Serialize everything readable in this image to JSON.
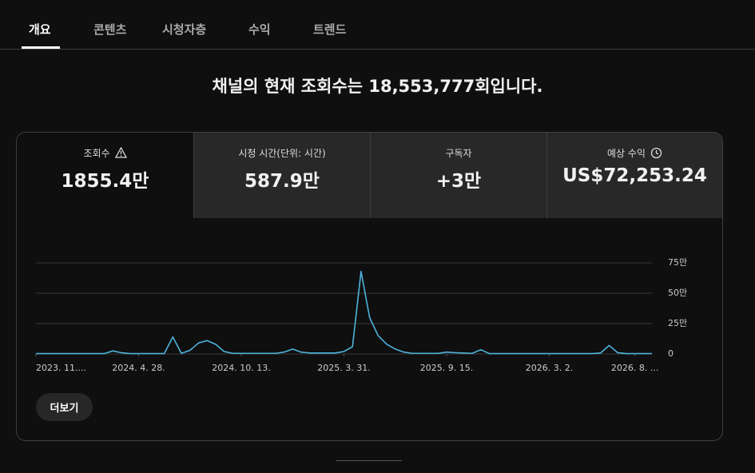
{
  "tabs": [
    "개요",
    "콘텐츠",
    "시청자층",
    "수익",
    "트렌드"
  ],
  "headline": "채널의 현재 조회수는 18,553,777회입니다.",
  "metrics": [
    {
      "label": "조회수",
      "value": "1855.4만"
    },
    {
      "label": "시청 시간(단위: 시간)",
      "value": "587.9만"
    },
    {
      "label": "구독자",
      "value": "+3만"
    },
    {
      "label": "예상 수익",
      "value": "US$72,253.24"
    }
  ],
  "chart_data": {
    "type": "line",
    "color": "#4fb3dc",
    "grid": true,
    "values": [
      3000,
      3000,
      3000,
      3000,
      3000,
      3000,
      3000,
      3000,
      3000,
      25000,
      10000,
      3000,
      3000,
      3000,
      3000,
      3000,
      140000,
      5000,
      30000,
      90000,
      110000,
      80000,
      20000,
      5000,
      5000,
      5000,
      5000,
      5000,
      5000,
      15000,
      40000,
      15000,
      8000,
      8000,
      8000,
      8000,
      20000,
      60000,
      680000,
      300000,
      150000,
      80000,
      40000,
      15000,
      5000,
      5000,
      5000,
      5000,
      15000,
      10000,
      8000,
      5000,
      35000,
      3000,
      3000,
      3000,
      3000,
      3000,
      3000,
      3000,
      3000,
      3000,
      3000,
      3000,
      3000,
      3000,
      8000,
      70000,
      10000,
      3000,
      3000,
      3000,
      3000
    ],
    "xlim": [
      0,
      72
    ],
    "xticks": [
      {
        "value": 0,
        "label": "2023. 11...."
      },
      {
        "value": 12,
        "label": "2024. 4. 28."
      },
      {
        "value": 24,
        "label": "2024. 10. 13."
      },
      {
        "value": 36,
        "label": "2025. 3. 31."
      },
      {
        "value": 48,
        "label": "2025. 9. 15."
      },
      {
        "value": 60,
        "label": "2026. 3. 2."
      },
      {
        "value": 70,
        "label": "2026. 8. ..."
      }
    ],
    "ylim": [
      0,
      750000
    ],
    "yticks": [
      {
        "value": 0,
        "label": "0"
      },
      {
        "value": 250000,
        "label": "25만"
      },
      {
        "value": 500000,
        "label": "50만"
      },
      {
        "value": 750000,
        "label": "75만"
      }
    ]
  },
  "button": "더보기"
}
